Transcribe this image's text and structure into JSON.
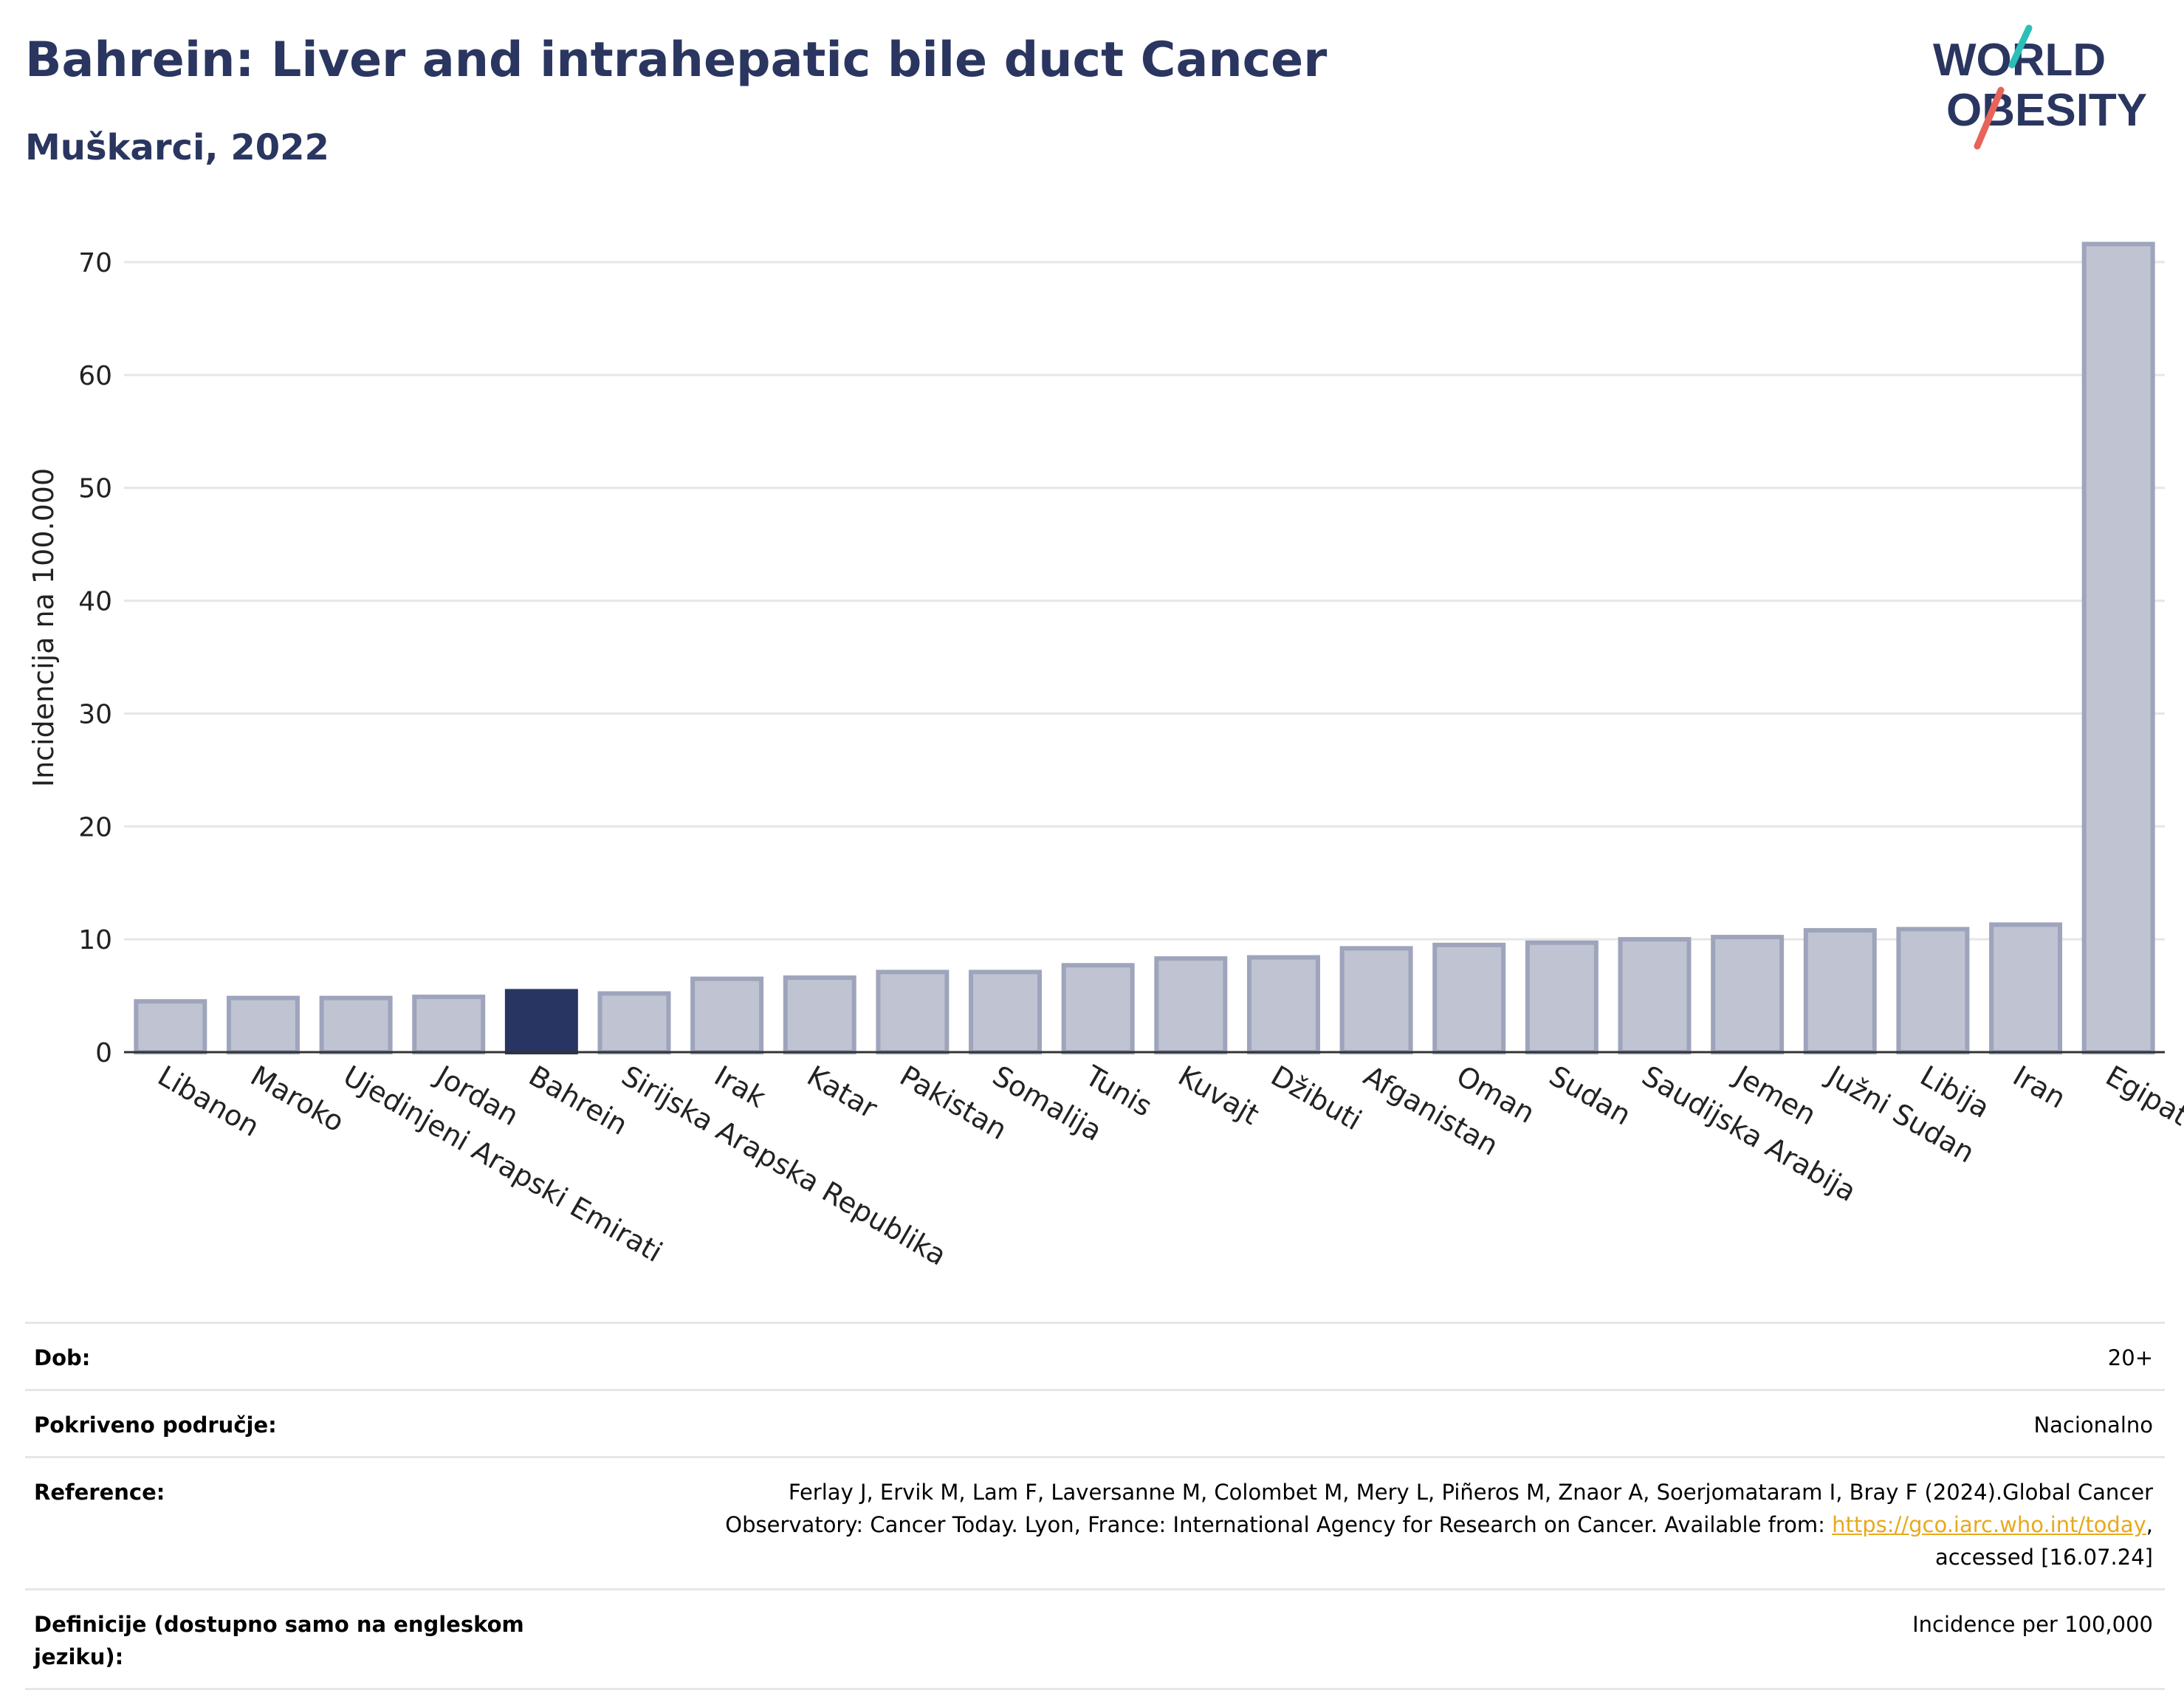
{
  "header": {
    "title": "Bahrein: Liver and intrahepatic bile duct Cancer",
    "subtitle": "Muškarci, 2022",
    "logo_line1": "WORLD",
    "logo_line2": "OBESITY"
  },
  "colors": {
    "title": "#2a3660",
    "bar_default": "#bfc3d2",
    "bar_border": "#9ea4bb",
    "bar_highlight": "#283562",
    "logo_teal": "#2bbfb7",
    "logo_red": "#e8645a",
    "link": "#e8a91b"
  },
  "chart_data": {
    "type": "bar",
    "ylabel": "Incidencija na 100.000",
    "xlabel": "",
    "ylim": [
      0,
      72
    ],
    "yticks": [
      0,
      10,
      20,
      30,
      40,
      50,
      60,
      70
    ],
    "grid": true,
    "highlight": "Bahrein",
    "categories": [
      "Libanon",
      "Maroko",
      "Ujedinjeni Arapski Emirati",
      "Jordan",
      "Bahrein",
      "Sirijska Arapska Republika",
      "Irak",
      "Katar",
      "Pakistan",
      "Somalija",
      "Tunis",
      "Kuvajt",
      "Džibuti",
      "Afganistan",
      "Oman",
      "Sudan",
      "Saudijska Arabija",
      "Jemen",
      "Južni Sudan",
      "Libija",
      "Iran",
      "Egipat"
    ],
    "values": [
      4.5,
      4.8,
      4.8,
      4.9,
      5.4,
      5.2,
      6.5,
      6.6,
      7.1,
      7.1,
      7.7,
      8.3,
      8.4,
      9.2,
      9.5,
      9.7,
      10.0,
      10.2,
      10.8,
      10.9,
      11.3,
      71.6
    ]
  },
  "meta": [
    {
      "label": "Dob:",
      "value": "20+"
    },
    {
      "label": "Pokriveno područje:",
      "value": "Nacionalno"
    },
    {
      "label": "Reference:",
      "value_line1": "Ferlay J, Ervik M, Lam F, Laversanne M, Colombet M, Mery L, Piñeros M, Znaor A, Soerjomataram I, Bray F (2024).Global Cancer",
      "value_line2_pre": "Observatory: Cancer Today. Lyon, France: International Agency for Research on Cancer. Available from: ",
      "link": "https://gco.iarc.who.int/today",
      "value_line2_post": ",",
      "value_line3": "accessed [16.07.24]"
    },
    {
      "label": "Definicije (dostupno samo na engleskom jeziku):",
      "value": "Incidence per 100,000"
    }
  ]
}
